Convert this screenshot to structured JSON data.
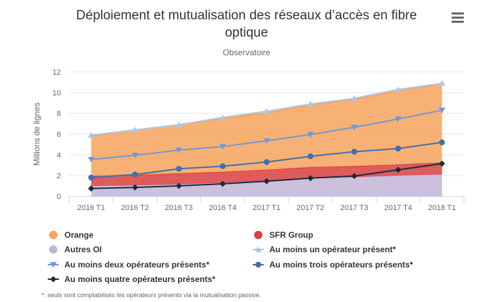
{
  "chart_data": {
    "type": "area",
    "title": "Déploiement et mutualisation des réseaux d’accès en fibre optique",
    "title_lines": [
      "Déploiement et mutualisation des réseaux d’accès en fibre",
      "optique"
    ],
    "subtitle": "Observatoire",
    "ylabel": "Millions de lignes",
    "xlabel": "",
    "ylim": [
      0,
      12
    ],
    "yticks": [
      0,
      2,
      4,
      6,
      8,
      10,
      12
    ],
    "categories": [
      "2016 T1",
      "2016 T2",
      "2016 T3",
      "2016 T4",
      "2017 T1",
      "2017 T2",
      "2017 T3",
      "2017 T4",
      "2018 T1"
    ],
    "grid": true,
    "legend_position": "bottom",
    "series": [
      {
        "name": "Orange",
        "kind": "stacked-area",
        "color": "#f7a35c",
        "values": [
          3.9,
          4.35,
          4.7,
          5.15,
          5.5,
          6.0,
          6.45,
          7.1,
          7.65
        ]
      },
      {
        "name": "SFR Group",
        "kind": "stacked-area",
        "color": "#d94040",
        "values": [
          0.95,
          1.0,
          1.05,
          1.05,
          1.05,
          1.05,
          1.05,
          1.05,
          1.15
        ]
      },
      {
        "name": "Autres OI",
        "kind": "stacked-area",
        "color": "#c4b5d6",
        "values": [
          1.0,
          1.05,
          1.15,
          1.3,
          1.5,
          1.75,
          1.85,
          2.0,
          2.1
        ]
      },
      {
        "name": "Au moins un opérateur présent*",
        "kind": "line",
        "marker": "triangle",
        "color": "#aec7e8",
        "values": [
          5.9,
          6.4,
          6.9,
          7.6,
          8.2,
          8.9,
          9.45,
          10.3,
          10.9
        ]
      },
      {
        "name": "Au moins deux opérateurs présents*",
        "kind": "line",
        "marker": "triangle-down",
        "color": "#6f9ad6",
        "values": [
          3.55,
          3.95,
          4.45,
          4.8,
          5.35,
          5.95,
          6.65,
          7.45,
          8.3
        ]
      },
      {
        "name": "Au moins trois opérateurs présents*",
        "kind": "line",
        "marker": "circle",
        "color": "#3f6fae",
        "values": [
          1.8,
          2.1,
          2.65,
          2.9,
          3.3,
          3.85,
          4.3,
          4.6,
          5.2
        ]
      },
      {
        "name": "Au moins quatre opérateurs présents*",
        "kind": "line",
        "marker": "diamond",
        "color": "#1c2b3d",
        "values": [
          0.75,
          0.85,
          1.0,
          1.2,
          1.45,
          1.75,
          1.95,
          2.55,
          3.15
        ]
      }
    ]
  },
  "footnote": "*: seuls sont comptabilisés les opérateurs présents via la mutualisation passive.",
  "menu": {
    "icon": "hamburger-menu-icon"
  }
}
